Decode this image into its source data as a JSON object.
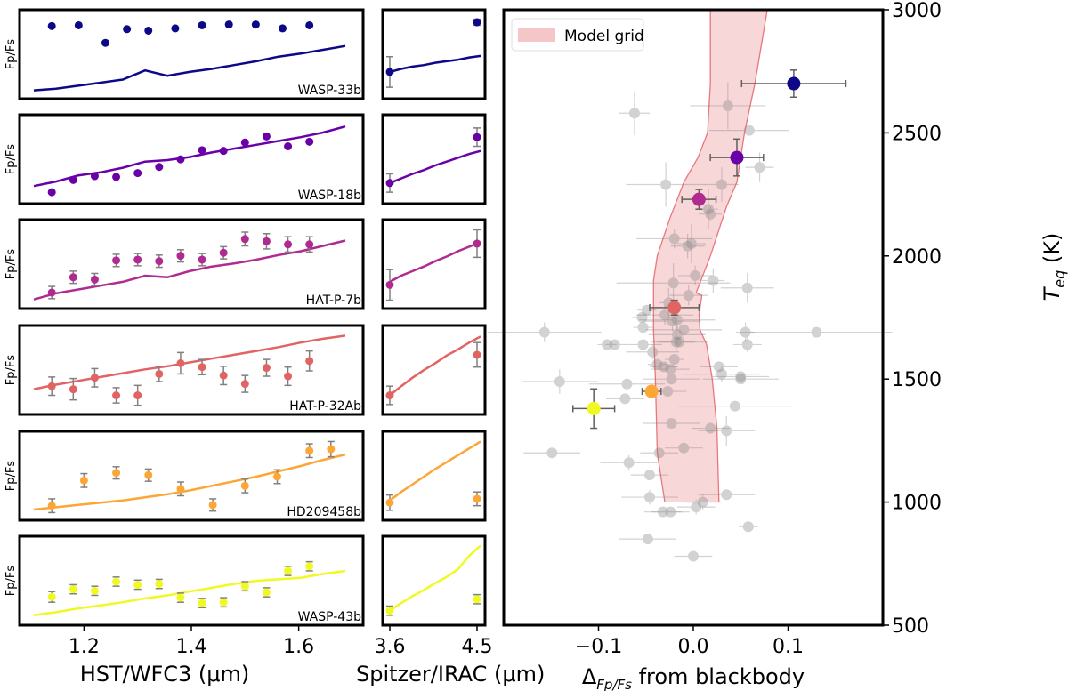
{
  "chart_data": [
    {
      "type": "scatter",
      "title": "",
      "ylabel": "Fp/Fs",
      "xlabel": "HST/WFC3 (μm)",
      "xlim": [
        1.08,
        1.72
      ],
      "xticks": [
        "1.2",
        "1.4",
        "1.6"
      ],
      "xtick_values": [
        1.2,
        1.4,
        1.6
      ],
      "note": "Normalized relative units (0=bottom, 1=top); y tick labels hidden",
      "wavelengths": [
        1.14,
        1.18,
        1.22,
        1.26,
        1.3,
        1.34,
        1.38,
        1.42,
        1.46,
        1.5,
        1.54,
        1.58,
        1.62
      ],
      "panels": [
        {
          "planet": "WASP-33b",
          "color": "#0d0887",
          "hst_obs": [
            0.88,
            null,
            0.89,
            0.66,
            0.84,
            0.82,
            0.85,
            0.89,
            0.9,
            0.9,
            0.85,
            0.89,
            null
          ],
          "hst_wavelengths": [
            1.14,
            1.19,
            1.24,
            1.28,
            1.32,
            1.37,
            1.42,
            1.47,
            1.52,
            1.57,
            1.62
          ],
          "hst_values": [
            0.88,
            0.89,
            0.66,
            0.84,
            0.82,
            0.85,
            0.89,
            0.9,
            0.9,
            0.85,
            0.89
          ],
          "hst_err": [
            0.01,
            0.01,
            0.01,
            0.01,
            0.01,
            0.01,
            0.01,
            0.01,
            0.01,
            0.01,
            0.01
          ],
          "model_hst": [
            0.04,
            0.06,
            0.1,
            0.14,
            0.18,
            0.3,
            0.23,
            0.28,
            0.32,
            0.37,
            0.42,
            0.48,
            0.52,
            0.57,
            0.62
          ],
          "spitzer_values": [
            0.28,
            0.93
          ],
          "spitzer_err": [
            0.2,
            0.04
          ],
          "model_spitzer": [
            0.28,
            0.32,
            0.35,
            0.37,
            0.4,
            0.42,
            0.44,
            0.47,
            0.49
          ]
        },
        {
          "planet": "WASP-18b",
          "color": "#6a00a8",
          "hst_wavelengths": [
            1.14,
            1.18,
            1.22,
            1.26,
            1.3,
            1.34,
            1.38,
            1.42,
            1.46,
            1.5,
            1.54,
            1.58,
            1.62
          ],
          "hst_values": [
            0.08,
            0.24,
            0.29,
            0.28,
            0.33,
            0.41,
            0.51,
            0.63,
            0.62,
            0.73,
            0.81,
            0.68,
            0.74
          ],
          "hst_err": [
            0.01,
            0.01,
            0.01,
            0.01,
            0.01,
            0.01,
            0.01,
            0.01,
            0.01,
            0.01,
            0.01,
            0.01,
            0.01
          ],
          "model_hst": [
            0.16,
            0.22,
            0.3,
            0.34,
            0.4,
            0.48,
            0.5,
            0.54,
            0.6,
            0.65,
            0.7,
            0.75,
            0.8,
            0.86,
            0.94
          ],
          "spitzer_values": [
            0.2,
            0.8
          ],
          "spitzer_err": [
            0.12,
            0.12
          ],
          "model_spitzer": [
            0.2,
            0.26,
            0.32,
            0.37,
            0.43,
            0.48,
            0.53,
            0.58,
            0.62
          ]
        },
        {
          "planet": "HAT-P-7b",
          "color": "#b12a90",
          "hst_wavelengths": [
            1.14,
            1.18,
            1.22,
            1.26,
            1.3,
            1.34,
            1.38,
            1.42,
            1.46,
            1.5,
            1.54,
            1.58,
            1.62
          ],
          "hst_values": [
            0.14,
            0.34,
            0.31,
            0.56,
            0.57,
            0.55,
            0.62,
            0.57,
            0.66,
            0.84,
            0.81,
            0.77,
            0.77
          ],
          "hst_err": [
            0.08,
            0.08,
            0.08,
            0.08,
            0.08,
            0.08,
            0.08,
            0.08,
            0.08,
            0.09,
            0.1,
            0.1,
            0.1
          ],
          "model_hst": [
            0.05,
            0.13,
            0.18,
            0.23,
            0.28,
            0.36,
            0.34,
            0.42,
            0.48,
            0.52,
            0.57,
            0.63,
            0.68,
            0.75,
            0.82
          ],
          "spitzer_values": [
            0.24,
            0.78
          ],
          "spitzer_err": [
            0.2,
            0.18
          ],
          "model_spitzer": [
            0.28,
            0.36,
            0.42,
            0.48,
            0.55,
            0.61,
            0.68,
            0.74,
            0.8
          ]
        },
        {
          "planet": "HAT-P-32Ab",
          "color": "#e16462",
          "hst_wavelengths": [
            1.14,
            1.18,
            1.22,
            1.26,
            1.3,
            1.34,
            1.38,
            1.42,
            1.46,
            1.5,
            1.54,
            1.58,
            1.62
          ],
          "hst_values": [
            0.3,
            0.26,
            0.41,
            0.18,
            0.18,
            0.46,
            0.6,
            0.55,
            0.44,
            0.33,
            0.54,
            0.43,
            0.63
          ],
          "hst_err": [
            0.12,
            0.14,
            0.12,
            0.1,
            0.13,
            0.1,
            0.14,
            0.1,
            0.12,
            0.11,
            0.11,
            0.12,
            0.13
          ],
          "model_hst": [
            0.26,
            0.32,
            0.37,
            0.42,
            0.47,
            0.52,
            0.56,
            0.61,
            0.66,
            0.71,
            0.76,
            0.81,
            0.87,
            0.92,
            0.96
          ],
          "spitzer_values": [
            0.18,
            0.71
          ],
          "spitzer_err": [
            0.12,
            0.16
          ],
          "model_spitzer": [
            0.18,
            0.3,
            0.41,
            0.51,
            0.6,
            0.7,
            0.78,
            0.87,
            0.95
          ]
        },
        {
          "planet": "HD209458b",
          "color": "#fca636",
          "hst_wavelengths": [
            1.14,
            1.2,
            1.26,
            1.32,
            1.38,
            1.44,
            1.5,
            1.56,
            1.62,
            1.66
          ],
          "hst_values": [
            0.12,
            0.45,
            0.55,
            0.52,
            0.34,
            0.13,
            0.38,
            0.5,
            0.84,
            0.86
          ],
          "hst_err": [
            0.09,
            0.09,
            0.08,
            0.08,
            0.09,
            0.08,
            0.09,
            0.09,
            0.09,
            0.1
          ],
          "hst_wavelengths_note": "approximate",
          "model_hst": [
            0.07,
            0.1,
            0.13,
            0.16,
            0.19,
            0.23,
            0.27,
            0.32,
            0.38,
            0.44,
            0.5,
            0.57,
            0.64,
            0.72,
            0.79
          ],
          "spitzer_values": [
            0.16,
            0.21
          ],
          "spitzer_err": [
            0.1,
            0.09
          ],
          "model_spitzer": [
            0.19,
            0.3,
            0.4,
            0.5,
            0.6,
            0.69,
            0.78,
            0.87,
            0.96
          ]
        },
        {
          "planet": "WASP-43b",
          "color": "#f0f921",
          "hst_wavelengths": [
            1.14,
            1.18,
            1.22,
            1.26,
            1.3,
            1.34,
            1.38,
            1.42,
            1.46,
            1.5,
            1.54,
            1.58,
            1.62
          ],
          "hst_values": [
            0.3,
            0.4,
            0.38,
            0.5,
            0.46,
            0.47,
            0.29,
            0.22,
            0.23,
            0.44,
            0.36,
            0.64,
            0.7
          ],
          "hst_err": [
            0.07,
            0.06,
            0.06,
            0.06,
            0.06,
            0.06,
            0.06,
            0.06,
            0.06,
            0.06,
            0.06,
            0.06,
            0.06
          ],
          "hst_wavelengths_full": [
            1.14,
            1.18,
            1.22,
            1.26,
            1.3,
            1.34,
            1.38,
            1.42,
            1.43,
            1.46,
            1.5,
            1.56,
            1.6,
            1.64
          ],
          "model_hst": [
            0.06,
            0.1,
            0.15,
            0.19,
            0.23,
            0.28,
            0.32,
            0.37,
            0.42,
            0.47,
            0.51,
            0.53,
            0.55,
            0.6,
            0.64
          ],
          "spitzer_values": [
            0.12,
            0.27
          ],
          "spitzer_err": [
            0.06,
            0.06
          ],
          "model_spitzer": [
            0.12,
            0.22,
            0.31,
            0.39,
            0.48,
            0.56,
            0.66,
            0.84,
            0.97
          ]
        }
      ],
      "spitzer_xlabel": "Spitzer/IRAC (μm)",
      "spitzer_xticks": [
        "3.6",
        "4.5"
      ],
      "spitzer_xtick_values": [
        3.6,
        4.5
      ]
    },
    {
      "type": "scatter",
      "title": "",
      "xlabel_main": "Δ",
      "xlabel_sub": "Fp/Fs",
      "xlabel_rest": " from blackbody",
      "ylabel_main": "T",
      "ylabel_sub": "eq",
      "ylabel_rest": " (K)",
      "xlim": [
        -0.2,
        0.2
      ],
      "ylim": [
        500,
        3000
      ],
      "xticks": [
        "−0.1",
        "0.0",
        "0.1"
      ],
      "xtick_values": [
        -0.1,
        0.0,
        0.1
      ],
      "yticks": [
        "500",
        "1000",
        "1500",
        "2000",
        "2500",
        "3000"
      ],
      "ytick_values": [
        500,
        1000,
        1500,
        2000,
        2500,
        3000
      ],
      "grid": false,
      "legend": {
        "position": "top-left",
        "entries": [
          {
            "label": "Model grid",
            "color": "#f4c6c8"
          }
        ]
      },
      "model_grid": {
        "left_edge": [
          [
            -0.03,
            1000
          ],
          [
            -0.038,
            1200
          ],
          [
            -0.04,
            1500
          ],
          [
            -0.042,
            1700
          ],
          [
            -0.042,
            1900
          ],
          [
            -0.038,
            2000
          ],
          [
            -0.025,
            2150
          ],
          [
            -0.01,
            2300
          ],
          [
            0.005,
            2400
          ],
          [
            0.015,
            2500
          ],
          [
            0.018,
            2700
          ],
          [
            0.018,
            3000
          ]
        ],
        "right_edge": [
          [
            0.027,
            1000
          ],
          [
            0.025,
            1300
          ],
          [
            0.02,
            1500
          ],
          [
            0.014,
            1640
          ],
          [
            0.007,
            1700
          ],
          [
            0.006,
            1760
          ],
          [
            0.009,
            1840
          ],
          [
            0.003,
            1850
          ],
          [
            0.018,
            2000
          ],
          [
            0.035,
            2200
          ],
          [
            0.046,
            2300
          ],
          [
            0.054,
            2500
          ],
          [
            0.065,
            2700
          ],
          [
            0.078,
            3000
          ]
        ],
        "color": "#f4c6c8",
        "edge_color": "#e8777c"
      },
      "highlighted": [
        {
          "planet": "WASP-33b",
          "x": 0.106,
          "y": 2700,
          "xerr": 0.055,
          "yerr": 55,
          "color": "#0d0887"
        },
        {
          "planet": "WASP-18b",
          "x": 0.046,
          "y": 2400,
          "xerr": 0.028,
          "yerr": 75,
          "color": "#6a00a8"
        },
        {
          "planet": "HAT-P-7b",
          "x": 0.006,
          "y": 2230,
          "xerr": 0.018,
          "yerr": 40,
          "color": "#b12a90"
        },
        {
          "planet": "HAT-P-32Ab",
          "x": -0.02,
          "y": 1790,
          "xerr": 0.026,
          "yerr": 30,
          "color": "#e16462"
        },
        {
          "planet": "HD209458b",
          "x": -0.044,
          "y": 1450,
          "xerr": 0.01,
          "yerr": 15,
          "color": "#fca636"
        },
        {
          "planet": "WASP-43b",
          "x": -0.105,
          "y": 1380,
          "xerr": 0.022,
          "yerr": 80,
          "color": "#f0f921"
        }
      ],
      "background_points": [
        [
          -0.062,
          2580,
          0.016,
          90
        ],
        [
          0.0365,
          2610,
          0.04,
          95
        ],
        [
          0.059,
          2510,
          0.042,
          20
        ],
        [
          0.07,
          2360,
          0.015,
          60
        ],
        [
          -0.029,
          2290,
          0.042,
          90
        ],
        [
          0.03,
          2290,
          0.018,
          70
        ],
        [
          0.016,
          2190,
          0.01,
          80
        ],
        [
          0.018,
          2170,
          0.012,
          30
        ],
        [
          -0.02,
          2070,
          0.04,
          40
        ],
        [
          -0.006,
          2040,
          0.018,
          50
        ],
        [
          -0.002,
          2050,
          0.015,
          80
        ],
        [
          0.002,
          1920,
          0.018,
          40
        ],
        [
          0.021,
          1900,
          0.012,
          50
        ],
        [
          0.057,
          1870,
          0.028,
          60
        ],
        [
          -0.021,
          1890,
          0.06,
          80
        ],
        [
          -0.005,
          1840,
          0.02,
          40
        ],
        [
          -0.049,
          1780,
          0.01,
          20
        ],
        [
          -0.054,
          1750,
          0.01,
          20
        ],
        [
          -0.017,
          1740,
          0.04,
          40
        ],
        [
          -0.01,
          1700,
          0.04,
          40
        ],
        [
          -0.018,
          1650,
          0.02,
          40
        ],
        [
          -0.017,
          1680,
          0.03,
          40
        ],
        [
          -0.053,
          1710,
          0.01,
          20
        ],
        [
          -0.043,
          1610,
          0.028,
          30
        ],
        [
          -0.157,
          1690,
          0.06,
          40
        ],
        [
          -0.091,
          1640,
          0.01,
          20
        ],
        [
          -0.083,
          1640,
          0.01,
          20
        ],
        [
          -0.053,
          1640,
          0.02,
          20
        ],
        [
          0.055,
          1690,
          0.01,
          40
        ],
        [
          0.057,
          1640,
          0.015,
          30
        ],
        [
          -0.038,
          1560,
          0.01,
          20
        ],
        [
          -0.031,
          1550,
          0.015,
          20
        ],
        [
          -0.024,
          1540,
          0.02,
          20
        ],
        [
          -0.023,
          1500,
          0.03,
          20
        ],
        [
          0.027,
          1550,
          0.02,
          20
        ],
        [
          0.03,
          1520,
          0.04,
          30
        ],
        [
          0.05,
          1500,
          0.04,
          20
        ],
        [
          0.05,
          1510,
          0.03,
          20
        ],
        [
          -0.141,
          1490,
          0.04,
          50
        ],
        [
          -0.07,
          1480,
          0.04,
          20
        ],
        [
          -0.072,
          1420,
          0.02,
          20
        ],
        [
          -0.027,
          1450,
          0.02,
          20
        ],
        [
          0.044,
          1390,
          0.06,
          20
        ],
        [
          -0.023,
          1320,
          0.03,
          20
        ],
        [
          0.018,
          1300,
          0.02,
          20
        ],
        [
          0.035,
          1290,
          0.03,
          60
        ],
        [
          -0.149,
          1200,
          0.03,
          20
        ],
        [
          -0.01,
          1220,
          0.02,
          20
        ],
        [
          -0.036,
          1200,
          0.02,
          20
        ],
        [
          -0.068,
          1160,
          0.03,
          30
        ],
        [
          -0.046,
          1110,
          0.02,
          20
        ],
        [
          -0.046,
          1020,
          0.03,
          30
        ],
        [
          0.035,
          1030,
          0.03,
          20
        ],
        [
          0.01,
          1000,
          0.02,
          30
        ],
        [
          0.003,
          980,
          0.02,
          30
        ],
        [
          -0.032,
          960,
          0.02,
          20
        ],
        [
          -0.024,
          960,
          0.02,
          20
        ],
        [
          0.058,
          900,
          0.01,
          20
        ],
        [
          -0.048,
          850,
          0.03,
          20
        ],
        [
          0.0,
          780,
          0.02,
          20
        ],
        [
          0.13,
          1690,
          0.08,
          20
        ],
        [
          -0.03,
          1760,
          0.03,
          40
        ],
        [
          -0.022,
          1735,
          0.03,
          40
        ],
        [
          -0.026,
          1810,
          0.01,
          60
        ],
        [
          -0.015,
          1650,
          0.03,
          20
        ],
        [
          -0.02,
          1580,
          0.01,
          20
        ]
      ],
      "background_color": "#808080"
    }
  ]
}
